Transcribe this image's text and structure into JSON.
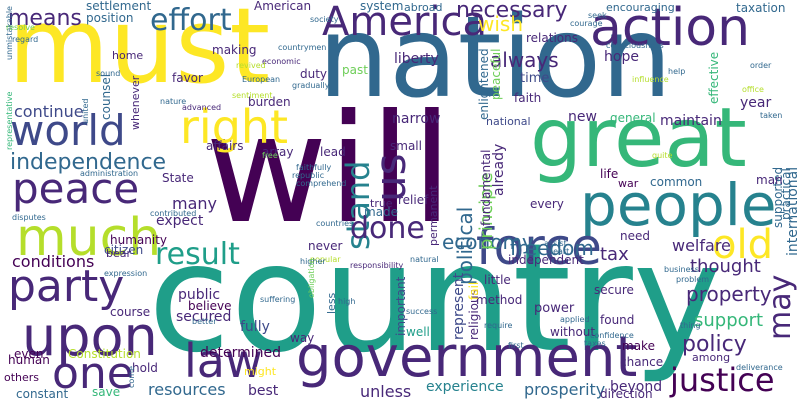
{
  "wordcloud": {
    "words": [
      "will",
      "country",
      "nation",
      "must",
      "great",
      "government",
      "people",
      "America",
      "action",
      "peace",
      "world",
      "party",
      "upon",
      "right",
      "much",
      "one",
      "force",
      "law",
      "old",
      "justice",
      "effort",
      "independence",
      "result",
      "stand",
      "us",
      "done",
      "economy",
      "freedom",
      "policy",
      "may",
      "means",
      "necessary",
      "wish",
      "always",
      "political",
      "principle",
      "continue",
      "conditions",
      "tax",
      "thought",
      "property",
      "support",
      "resources",
      "experience",
      "prosperity",
      "direction",
      "beyond",
      "unless",
      "best",
      "fully",
      "human",
      "even",
      "others",
      "constant",
      "save",
      "hold",
      "determined",
      "might",
      "course",
      "public",
      "secured",
      "believe",
      "humanity",
      "citizen",
      "expect",
      "many",
      "make",
      "chance",
      "found",
      "without",
      "method",
      "power",
      "secure",
      "represent",
      "important",
      "never",
      "independent",
      "little",
      "welfare",
      "need",
      "common",
      "life",
      "war",
      "every",
      "made",
      "relief",
      "true",
      "permanent",
      "fundamental",
      "already",
      "religious",
      "enlightened",
      "peaceful",
      "national",
      "faith",
      "hope",
      "effective",
      "time",
      "year",
      "international",
      "practical",
      "supported",
      "man",
      "maintain",
      "general",
      "new",
      "small",
      "narrow",
      "lead",
      "liberty",
      "past",
      "duty",
      "burden",
      "affairs",
      "array",
      "State",
      "favor",
      "making",
      "settlement",
      "position",
      "American",
      "system",
      "abroad",
      "encouraging",
      "taxation",
      "relations",
      "counsel",
      "whenever",
      "home",
      "Constitution",
      "bear",
      "administration",
      "countries",
      "among",
      "well",
      "way",
      "less",
      "fail",
      "require",
      "first",
      "free",
      "high",
      "popular",
      "natural",
      "responsibility",
      "success",
      "sound",
      "society",
      "seek",
      "courage",
      "economic",
      "advanced",
      "European",
      "revived",
      "gradually",
      "faithfully",
      "contributed",
      "suffering",
      "expression",
      "disputes",
      "republic",
      "comprehend",
      "unmistakable",
      "representative",
      "resolve",
      "consciousness",
      "influence",
      "order",
      "help",
      "office",
      "taken",
      "deliverance",
      "business",
      "confidence",
      "taxes",
      "applied",
      "problem",
      "nature",
      "united",
      "better",
      "come",
      "higher",
      "heart",
      "obligation",
      "assist",
      "quite",
      "thing",
      "countrymen",
      "sentiment",
      "regard"
    ]
  }
}
